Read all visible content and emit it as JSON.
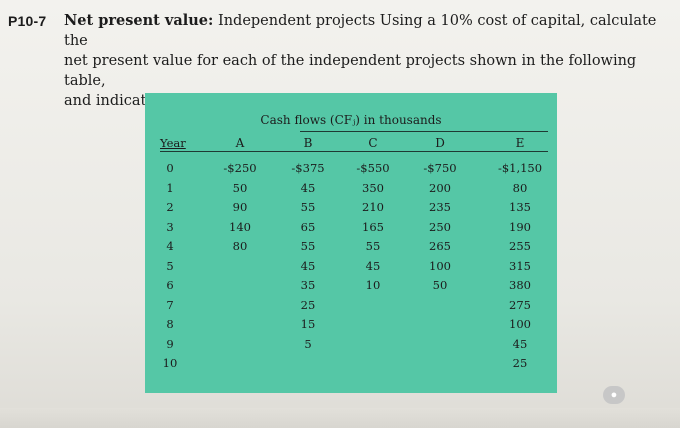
{
  "problem": {
    "id": "P10-7",
    "heading": "Net present value:",
    "line1_rest": " Independent projects Using a 10% cost of capital, calculate the",
    "line2": "net present value for each of the independent projects shown in the following table,",
    "line3": "and indicate whether each is acceptable."
  },
  "table": {
    "caption": "Cash flows (CFⱼ) in thousands",
    "year_label": "Year",
    "columns": [
      "A",
      "B",
      "C",
      "D",
      "E"
    ],
    "years": [
      "0",
      "1",
      "2",
      "3",
      "4",
      "5",
      "6",
      "7",
      "8",
      "9",
      "10"
    ],
    "rows": [
      [
        "-$250",
        "-$375",
        "-$550",
        "-$750",
        "-$1,150"
      ],
      [
        "50",
        "45",
        "350",
        "200",
        "80"
      ],
      [
        "90",
        "55",
        "210",
        "235",
        "135"
      ],
      [
        "140",
        "65",
        "165",
        "250",
        "190"
      ],
      [
        "80",
        "55",
        "55",
        "265",
        "255"
      ],
      [
        "",
        "45",
        "45",
        "100",
        "315"
      ],
      [
        "",
        "35",
        "10",
        "50",
        "380"
      ],
      [
        "",
        "25",
        "",
        "",
        "275"
      ],
      [
        "",
        "15",
        "",
        "",
        "100"
      ],
      [
        "",
        "5",
        "",
        "",
        "45"
      ],
      [
        "",
        "",
        "",
        "",
        "25"
      ]
    ]
  },
  "colors": {
    "panel": "#55c7a6"
  }
}
